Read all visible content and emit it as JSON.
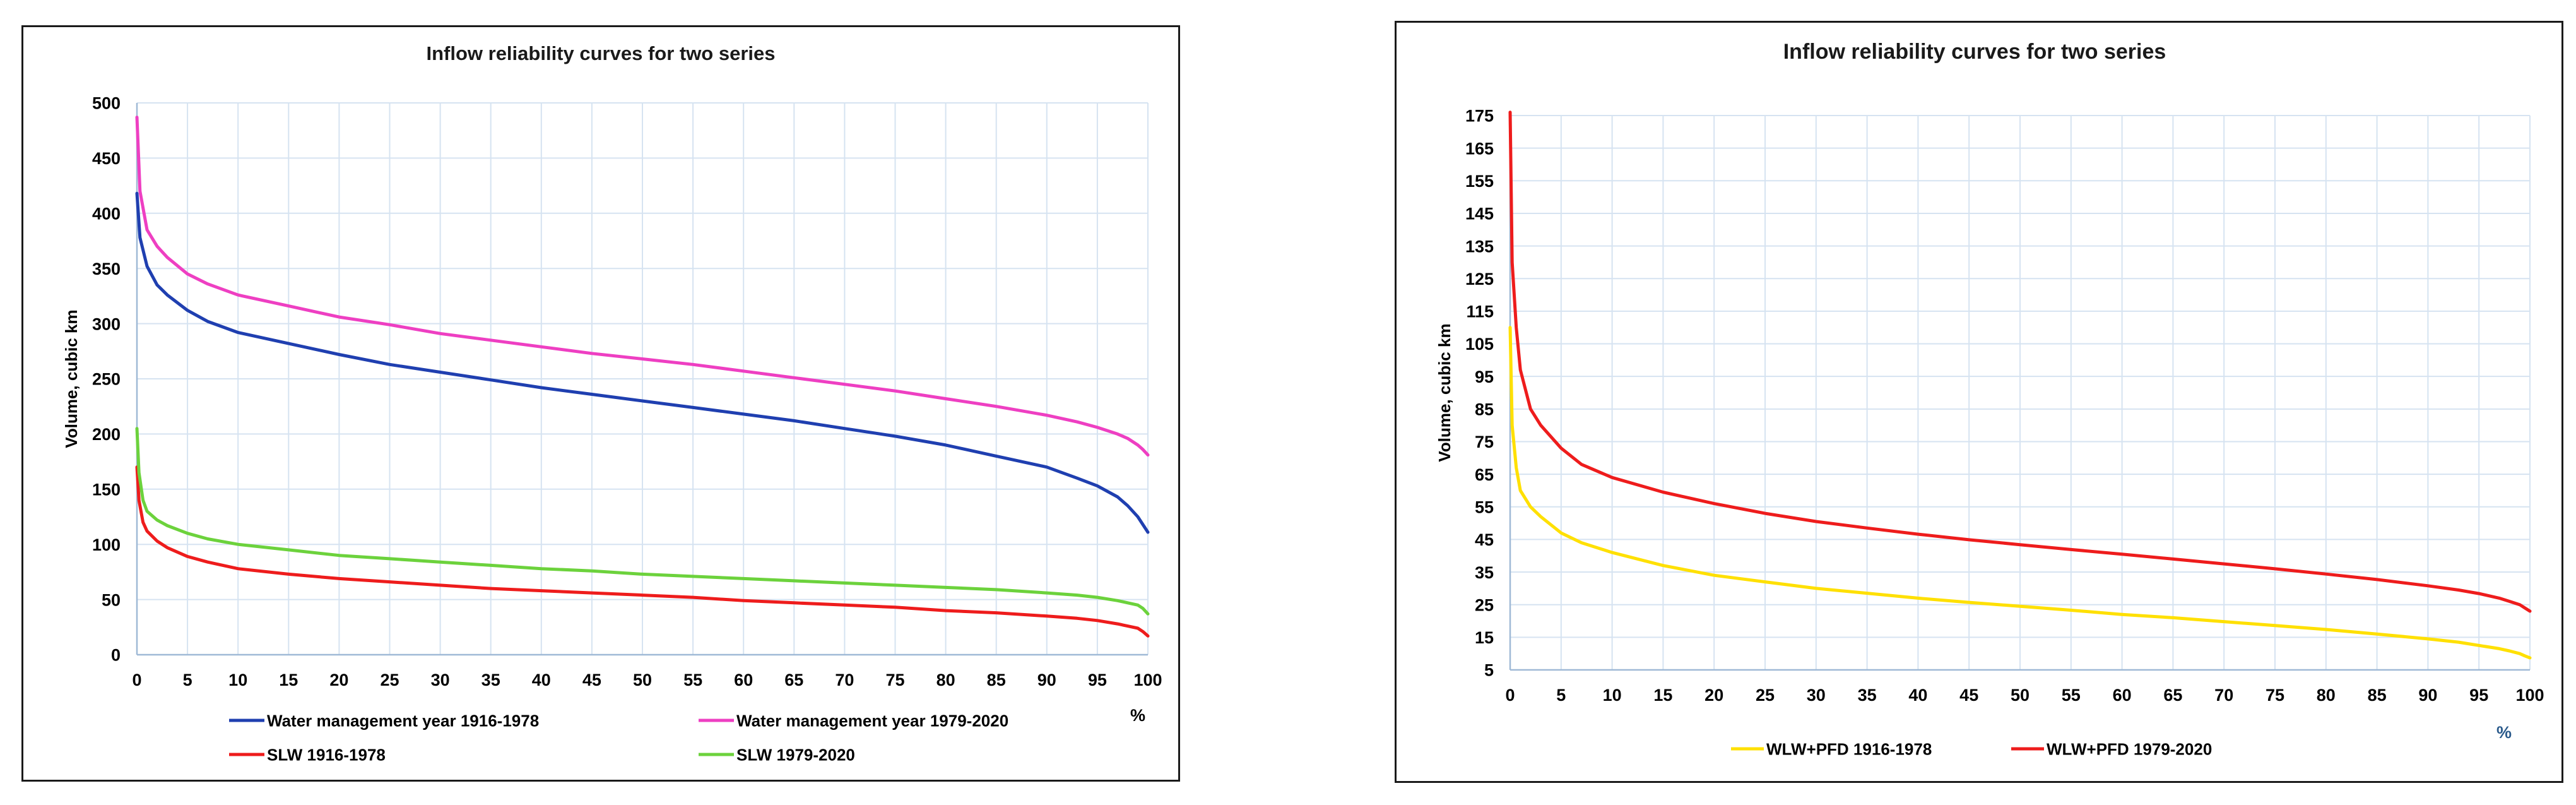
{
  "chart_data": [
    {
      "type": "line",
      "title": "Inflow reliability curves for two series",
      "xlabel": "%",
      "ylabel": "Volume, cubic km",
      "xlim": [
        0,
        100
      ],
      "ylim": [
        0,
        500
      ],
      "xticks": [
        0,
        5,
        10,
        15,
        20,
        25,
        30,
        35,
        40,
        45,
        50,
        55,
        60,
        65,
        70,
        75,
        80,
        85,
        90,
        95,
        100
      ],
      "yticks": [
        0,
        50,
        100,
        150,
        200,
        250,
        300,
        350,
        400,
        450,
        500
      ],
      "grid": true,
      "legend_position": "bottom",
      "series": [
        {
          "name": "Water management year 1916-1978",
          "color": "#1f3fb0",
          "x": [
            0,
            0.3,
            1,
            2,
            3,
            5,
            7,
            10,
            15,
            20,
            25,
            30,
            35,
            40,
            45,
            50,
            55,
            60,
            65,
            70,
            75,
            80,
            85,
            90,
            93,
            95,
            97,
            98,
            99,
            99.5,
            100
          ],
          "y": [
            418,
            378,
            352,
            335,
            326,
            312,
            302,
            292,
            282,
            272,
            263,
            256,
            249,
            242,
            236,
            230,
            224,
            218,
            212,
            205,
            198,
            190,
            180,
            170,
            160,
            153,
            143,
            135,
            125,
            118,
            111
          ]
        },
        {
          "name": "Water management year 1979-2020",
          "color": "#ee3fc2",
          "x": [
            0,
            0.3,
            1,
            2,
            3,
            5,
            7,
            10,
            15,
            20,
            25,
            30,
            35,
            40,
            45,
            50,
            55,
            60,
            65,
            70,
            75,
            80,
            85,
            90,
            93,
            95,
            97,
            98,
            99,
            99.5,
            100
          ],
          "y": [
            487,
            420,
            385,
            370,
            360,
            345,
            336,
            326,
            316,
            306,
            299,
            291,
            285,
            279,
            273,
            268,
            263,
            257,
            251,
            245,
            239,
            232,
            225,
            217,
            211,
            206,
            200,
            196,
            190,
            186,
            181
          ]
        },
        {
          "name": "SLW 1916-1978",
          "color": "#ee1c1c",
          "x": [
            0,
            0.2,
            0.6,
            1,
            2,
            3,
            5,
            7,
            10,
            15,
            20,
            25,
            30,
            35,
            40,
            45,
            50,
            55,
            60,
            65,
            70,
            75,
            80,
            85,
            90,
            93,
            95,
            97,
            98,
            99,
            99.5,
            100
          ],
          "y": [
            170,
            140,
            120,
            112,
            103,
            97,
            89,
            84,
            78,
            73,
            69,
            66,
            63,
            60,
            58,
            56,
            54,
            52,
            49,
            47,
            45,
            43,
            40,
            38,
            35,
            33,
            31,
            28,
            26,
            24,
            21,
            17
          ]
        },
        {
          "name": "SLW 1979-2020",
          "color": "#6cd23c",
          "x": [
            0,
            0.2,
            0.6,
            1,
            2,
            3,
            5,
            7,
            10,
            15,
            20,
            25,
            30,
            35,
            40,
            45,
            50,
            55,
            60,
            65,
            70,
            75,
            80,
            85,
            90,
            93,
            95,
            97,
            98,
            99,
            99.5,
            100
          ],
          "y": [
            205,
            165,
            140,
            130,
            122,
            117,
            110,
            105,
            100,
            95,
            90,
            87,
            84,
            81,
            78,
            76,
            73,
            71,
            69,
            67,
            65,
            63,
            61,
            59,
            56,
            54,
            52,
            49,
            47,
            45,
            42,
            37
          ]
        }
      ]
    },
    {
      "type": "line",
      "title": "Inflow reliability curves for two series",
      "xlabel": "%",
      "ylabel": "Volume, cubic km",
      "xlim": [
        0,
        100
      ],
      "ylim": [
        5,
        175
      ],
      "xticks": [
        0,
        5,
        10,
        15,
        20,
        25,
        30,
        35,
        40,
        45,
        50,
        55,
        60,
        65,
        70,
        75,
        80,
        85,
        90,
        95,
        100
      ],
      "yticks": [
        5,
        15,
        25,
        35,
        45,
        55,
        65,
        75,
        85,
        95,
        105,
        115,
        125,
        135,
        145,
        155,
        165,
        175
      ],
      "grid": true,
      "legend_position": "bottom",
      "series": [
        {
          "name": "WLW+PFD 1916-1978",
          "color": "#ffe000",
          "x": [
            0,
            0.2,
            0.6,
            1,
            2,
            3,
            5,
            7,
            10,
            15,
            20,
            25,
            30,
            35,
            40,
            45,
            50,
            55,
            60,
            65,
            70,
            75,
            80,
            85,
            90,
            93,
            95,
            97,
            98,
            99,
            99.5,
            100
          ],
          "y": [
            110,
            80,
            67,
            60,
            55,
            52,
            47,
            44,
            41,
            37,
            34,
            32,
            30,
            28.5,
            27,
            25.7,
            24.5,
            23.3,
            22,
            21,
            19.8,
            18.6,
            17.4,
            16,
            14.5,
            13.5,
            12.5,
            11.5,
            10.8,
            10,
            9.3,
            8.7
          ]
        },
        {
          "name": "WLW+PFD 1979-2020",
          "color": "#ee1c1c",
          "x": [
            0,
            0.2,
            0.6,
            1,
            2,
            3,
            5,
            7,
            10,
            15,
            20,
            25,
            30,
            35,
            40,
            45,
            50,
            55,
            60,
            65,
            70,
            75,
            80,
            85,
            90,
            93,
            95,
            97,
            98,
            99,
            99.5,
            100
          ],
          "y": [
            176,
            130,
            110,
            97,
            85,
            80,
            73,
            68,
            64,
            59.5,
            56,
            53,
            50.5,
            48.5,
            46.6,
            44.9,
            43.4,
            41.9,
            40.5,
            39,
            37.5,
            36,
            34.4,
            32.7,
            30.8,
            29.5,
            28.4,
            27,
            26,
            25,
            24,
            23
          ]
        }
      ]
    }
  ]
}
